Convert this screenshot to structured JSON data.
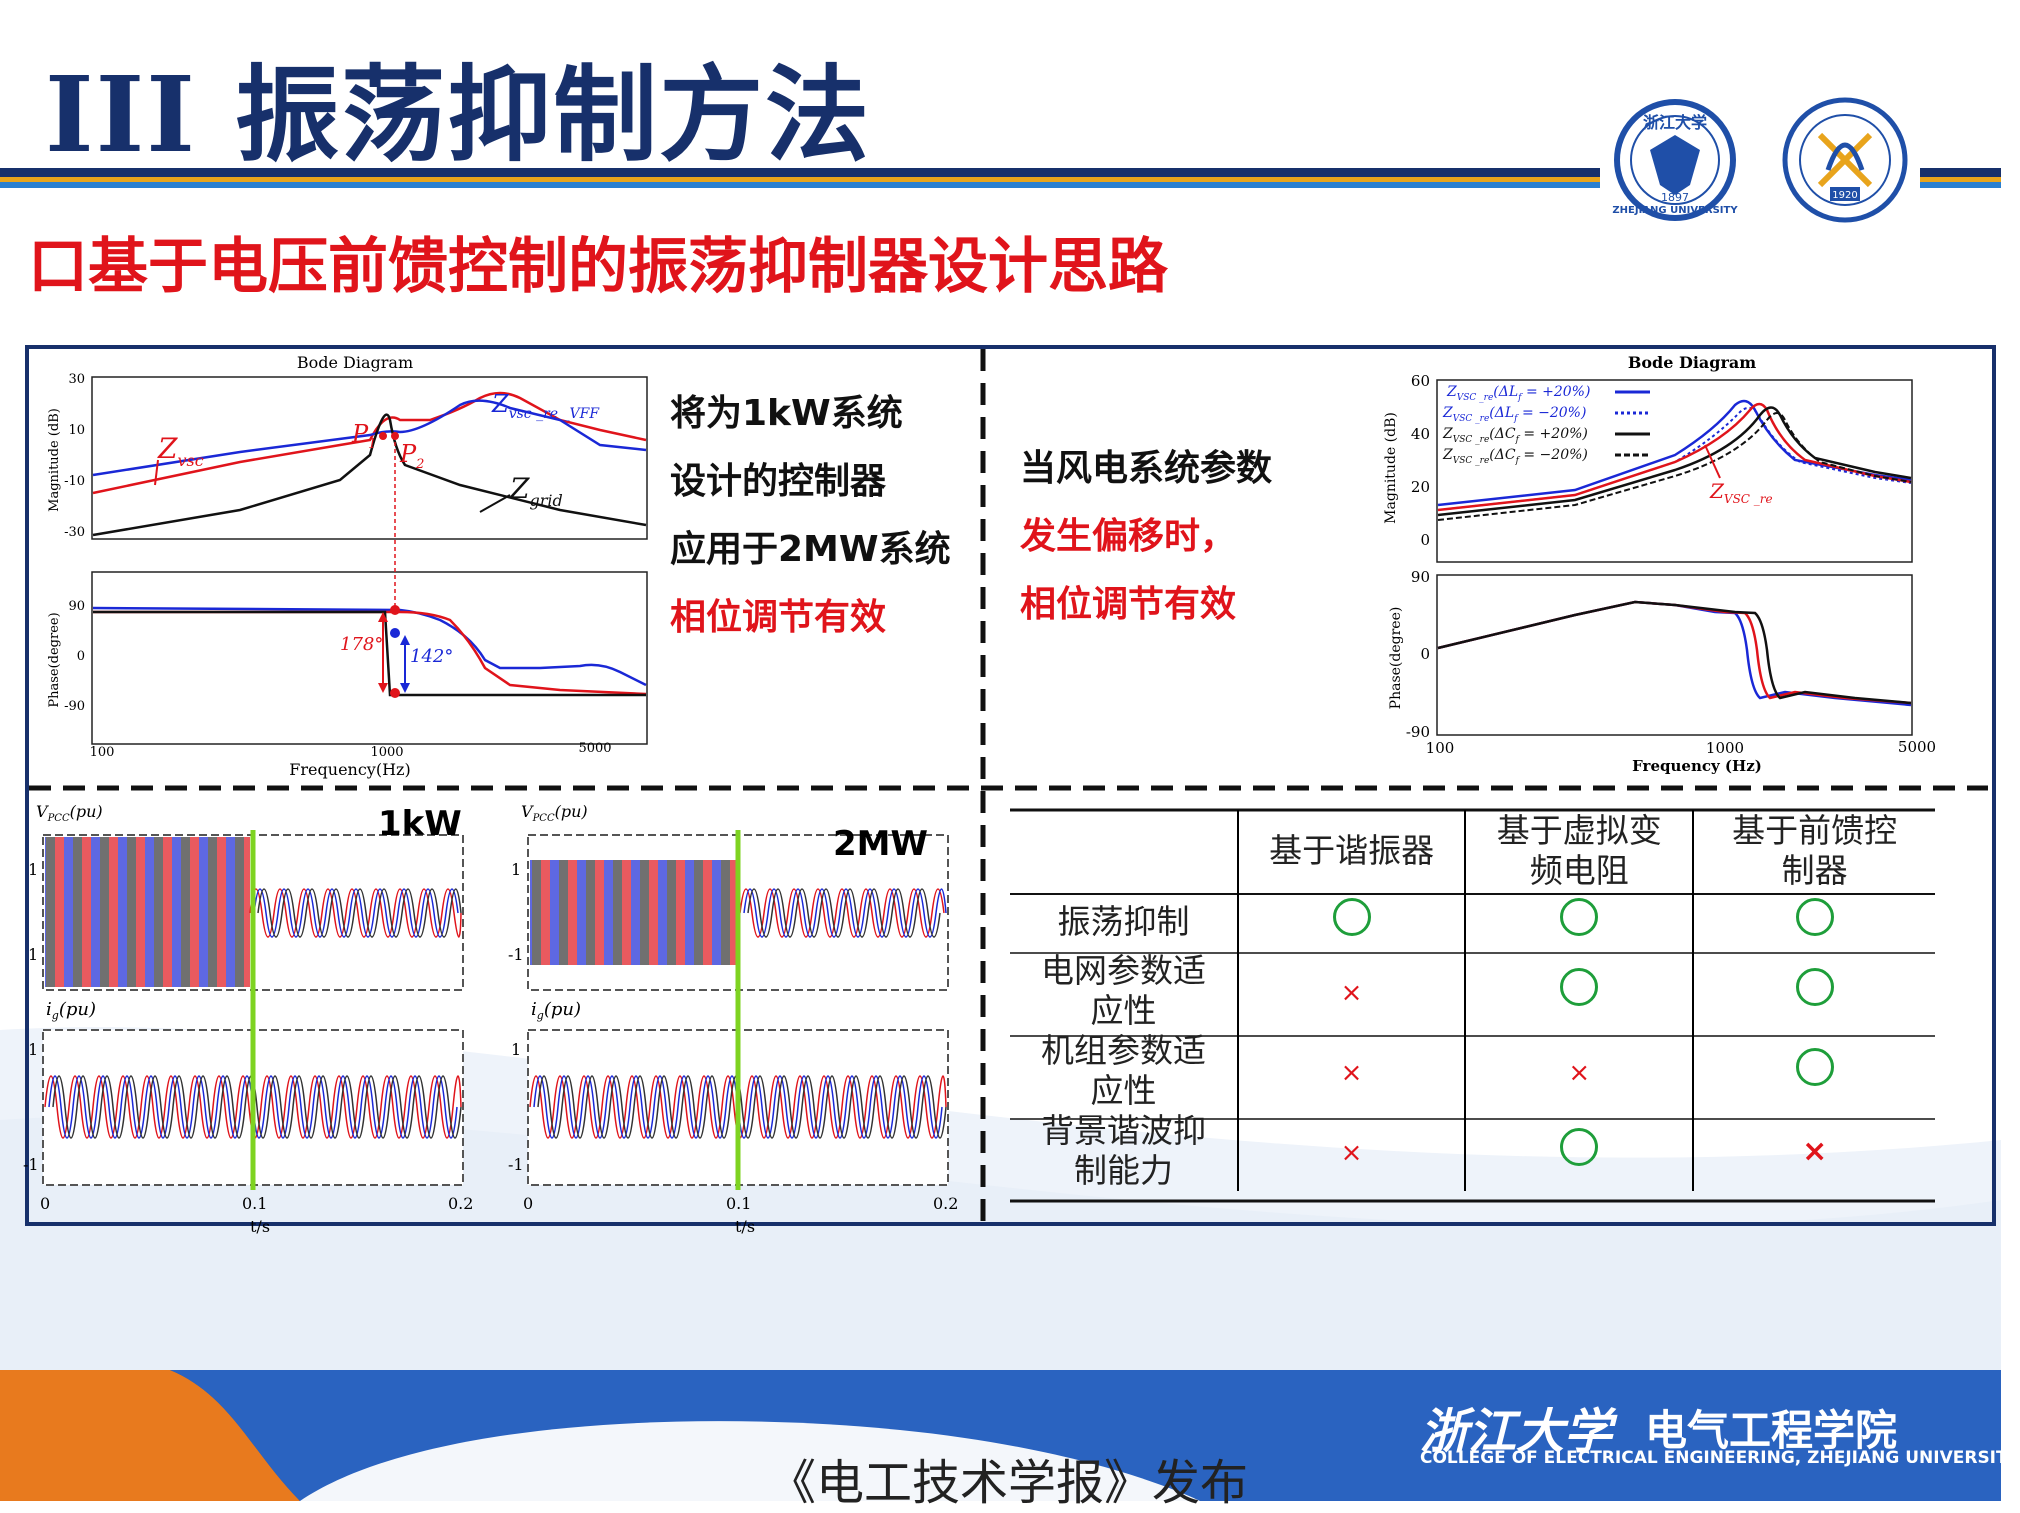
{
  "slide": {
    "title": "III 振荡抑制方法",
    "subtitle": "口基于电压前馈控制的振荡抑制器设计思路",
    "footer_caption": "《电工技术学报》发布",
    "footer_college": "电气工程学院",
    "footer_college_en": "COLLEGE OF ELECTRICAL ENGINEERING, ZHEJIANG UNIVERSITY",
    "logo_text": "浙江大学",
    "seal_left": {
      "text": "浙江大学",
      "year": "1897",
      "en": "ZHEJIANG UNIVERSITY"
    },
    "seal_right": {
      "year": "1920"
    }
  },
  "colors": {
    "navy": "#17306b",
    "red": "#e0141b",
    "blue": "#1a28d6",
    "green_marker": "#7ed321"
  },
  "left_desc": {
    "line1": "将为1kW系统",
    "line2": "设计的控制器",
    "line3": "应用于2MW系统",
    "line4": "相位调节有效"
  },
  "right_desc": {
    "line1": "当风电系统参数",
    "line2": "发生偏移时，",
    "line3": "相位调节有效"
  },
  "bode_left": {
    "title": "Bode Diagram",
    "mag_ylabel": "Magnitude (dB)",
    "phase_ylabel": "Phase(degree)",
    "xlabel": "Frequency(Hz)",
    "mag_ticks": [
      "30",
      "10",
      "-10",
      "-30"
    ],
    "phase_ticks": [
      "90",
      "0",
      "-90"
    ],
    "x_ticks": [
      "100",
      "1000",
      "5000"
    ],
    "label_zvsc": "Z",
    "label_zvsc_sub": "vsc",
    "label_zvff": "Z",
    "label_zvff_sub": "vsc _re _VFF",
    "label_zgrid": "Z",
    "label_zgrid_sub": "grid",
    "label_p1": "P",
    "label_p1_sub": "1",
    "label_p2": "P",
    "label_p2_sub": "2",
    "ann_178": "178°",
    "ann_142": "142°"
  },
  "bode_right": {
    "title": "Bode Diagram",
    "mag_ylabel": "Magnitude (dB)",
    "phase_ylabel": "Phase(degree)",
    "xlabel": "Frequency  (Hz)",
    "mag_ticks": [
      "60",
      "40",
      "20",
      "0"
    ],
    "phase_ticks": [
      "90",
      "0",
      "-90"
    ],
    "x_ticks": [
      "100",
      "1000",
      "5000"
    ],
    "legend": [
      {
        "z": "Z",
        "sub": "VSC _re",
        "param": "(ΔL",
        "psub": "f",
        "val": " = +20%)",
        "color": "#1a28d6",
        "dash": "solid"
      },
      {
        "z": "Z",
        "sub": "VSC _re",
        "param": "(ΔL",
        "psub": "f",
        "val": " = −20%)",
        "color": "#1a28d6",
        "dash": "dotted"
      },
      {
        "z": "Z",
        "sub": "VSC _re",
        "param": "(ΔC",
        "psub": "f",
        "val": " = +20%)",
        "color": "#111111",
        "dash": "solid"
      },
      {
        "z": "Z",
        "sub": "VSC _re",
        "param": "(ΔC",
        "psub": "f",
        "val": " = −20%)",
        "color": "#111111",
        "dash": "dashed"
      }
    ],
    "label_zre": "Z",
    "label_zre_sub": "VSC _re"
  },
  "waves": {
    "label_1kw": "1kW",
    "label_2mw": "2MW",
    "vpcc_label": "V",
    "vpcc_sub": "PCC",
    "vpcc_unit": "(pu)",
    "ig_label": "i",
    "ig_sub": "g",
    "ig_unit": "(pu)",
    "yticks_top": [
      "1",
      "-1"
    ],
    "xticks": [
      "0",
      "0.1",
      "0.2"
    ],
    "xlabel": "t/s"
  },
  "table": {
    "headers": [
      "",
      "基于谐振器",
      "基于虚拟变频电阻",
      "基于前馈控制器"
    ],
    "header_lines": [
      [
        "",
        ""
      ],
      [
        "基于谐振器",
        ""
      ],
      [
        "基于虚拟变",
        "频电阻"
      ],
      [
        "基于前馈控",
        "制器"
      ]
    ],
    "rows": [
      {
        "label": [
          "振荡抑制",
          ""
        ],
        "cells": [
          "ok",
          "ok",
          "ok"
        ]
      },
      {
        "label": [
          "电网参数适",
          "应性"
        ],
        "cells": [
          "no",
          "ok",
          "ok"
        ]
      },
      {
        "label": [
          "机组参数适",
          "应性"
        ],
        "cells": [
          "no",
          "no",
          "ok"
        ]
      },
      {
        "label": [
          "背景谐波抑",
          "制能力"
        ],
        "cells": [
          "no",
          "ok",
          "no"
        ]
      }
    ],
    "no_symbol": "×"
  }
}
